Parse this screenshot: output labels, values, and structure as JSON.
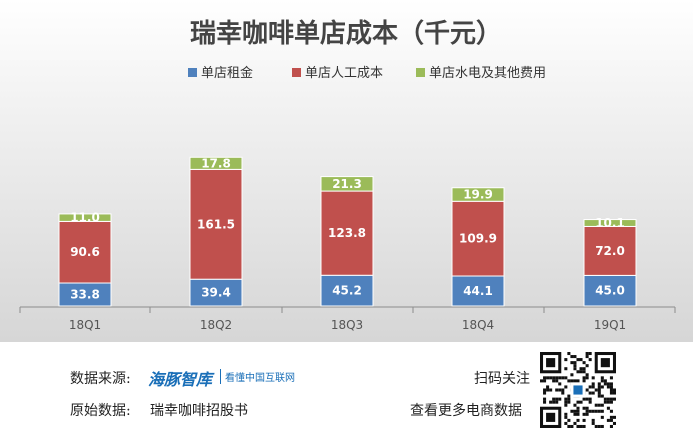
{
  "chart_data": {
    "type": "bar",
    "stacked": true,
    "title": "瑞幸咖啡单店成本（千元）",
    "categories": [
      "18Q1",
      "18Q2",
      "18Q3",
      "18Q4",
      "19Q1"
    ],
    "series": [
      {
        "name": "单店租金",
        "color": "#4f81bd",
        "values": [
          33.8,
          39.4,
          45.2,
          44.1,
          45.0
        ],
        "labels": [
          "33.8",
          "39.4",
          "45.2",
          "44.1",
          "45.0"
        ]
      },
      {
        "name": "单店人工成本",
        "color": "#c0504d",
        "values": [
          90.6,
          161.5,
          123.8,
          109.9,
          72.0
        ],
        "labels": [
          "90.6",
          "161.5",
          "123.8",
          "109.9",
          "72.0"
        ]
      },
      {
        "name": "单店水电及其他费用",
        "color": "#9bbb59",
        "values": [
          11.0,
          17.8,
          21.3,
          19.9,
          10.1
        ],
        "labels": [
          "11.0",
          "17.8",
          "21.3",
          "19.9",
          "10.1"
        ]
      }
    ],
    "legend_position": "top",
    "grid": false
  },
  "footer": {
    "source_label": "数据来源:",
    "logo_main": "海豚智库",
    "logo_sub": "看懂中国互联网",
    "original_label": "原始数据:",
    "original_value": "瑞幸咖啡招股书",
    "scan_text": "扫码关注",
    "more_text": "查看更多电商数据"
  }
}
